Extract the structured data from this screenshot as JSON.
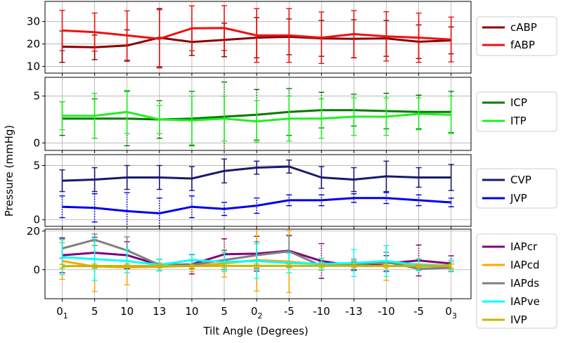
{
  "figure": {
    "ylabel": "Pressure (mmHg)",
    "xlabel": "Tilt Angle (Degrees)"
  },
  "chart_data": [
    {
      "type": "line",
      "panel": "arterial",
      "x_tick_labels": [
        {
          "base": "0",
          "sub": "1"
        },
        {
          "base": "5",
          "sub": ""
        },
        {
          "base": "10",
          "sub": ""
        },
        {
          "base": "13",
          "sub": ""
        },
        {
          "base": "10",
          "sub": ""
        },
        {
          "base": "5",
          "sub": ""
        },
        {
          "base": "0",
          "sub": "2"
        },
        {
          "base": "-5",
          "sub": ""
        },
        {
          "base": "-10",
          "sub": ""
        },
        {
          "base": "-13",
          "sub": ""
        },
        {
          "base": "-10",
          "sub": ""
        },
        {
          "base": "-5",
          "sub": ""
        },
        {
          "base": "0",
          "sub": "3"
        }
      ],
      "ylim": [
        7,
        39
      ],
      "yticks": [
        10,
        20,
        30
      ],
      "legend_placement": "right",
      "series": [
        {
          "name": "cABP",
          "color": "#8b0000",
          "style": "solid",
          "values": [
            18.8,
            18.5,
            19.3,
            22.8,
            20.9,
            21.8,
            22.8,
            23.2,
            22.5,
            22.3,
            22.5,
            21.0,
            21.6
          ],
          "errors": [
            7,
            5.5,
            7,
            13,
            6,
            7.5,
            9,
            8,
            8,
            8.5,
            8,
            7.5,
            6
          ]
        },
        {
          "name": "fABP",
          "color": "#ee1111",
          "style": "solid",
          "values": [
            26.0,
            25.3,
            23.8,
            22.3,
            27.0,
            27.1,
            23.8,
            23.8,
            22.8,
            24.4,
            23.4,
            22.8,
            22.0
          ],
          "errors": [
            9,
            8.5,
            11,
            13,
            10,
            10,
            12,
            12,
            11.5,
            10.5,
            11,
            11,
            10
          ]
        }
      ]
    },
    {
      "type": "line",
      "panel": "intracranial",
      "ylim": [
        -0.8,
        7
      ],
      "yticks": [
        0,
        5
      ],
      "legend_placement": "right",
      "series": [
        {
          "name": "ICP",
          "color": "#007b00",
          "style": "dotted",
          "values": [
            2.6,
            2.6,
            2.6,
            2.5,
            2.6,
            2.8,
            3.0,
            3.3,
            3.5,
            3.5,
            3.4,
            3.3,
            3.3
          ],
          "errors": [
            1.8,
            2.1,
            2.9,
            2.0,
            2.9,
            3.7,
            2.7,
            2.5,
            1.9,
            1.7,
            1.9,
            1.8,
            2.2
          ]
        },
        {
          "name": "ITP",
          "color": "#22ee22",
          "style": "solid",
          "values": [
            2.9,
            2.9,
            3.3,
            2.5,
            2.4,
            2.6,
            2.3,
            2.6,
            2.6,
            2.8,
            2.8,
            3.1,
            3.0
          ],
          "errors": [
            1.5,
            2.4,
            2.3,
            1.5,
            2.6,
            2.4,
            2.2,
            2.4,
            2.1,
            2.0,
            2.0,
            1.7,
            2.0
          ]
        }
      ]
    },
    {
      "type": "line",
      "panel": "venous",
      "ylim": [
        -0.6,
        6
      ],
      "yticks": [
        0,
        5
      ],
      "legend_placement": "right",
      "series": [
        {
          "name": "CVP",
          "color": "#191970",
          "style": "solid",
          "values": [
            3.6,
            3.7,
            3.9,
            3.9,
            3.8,
            4.5,
            4.8,
            4.9,
            3.9,
            3.7,
            4.0,
            3.9,
            3.9
          ],
          "errors": [
            1.0,
            1.1,
            1.1,
            1.1,
            1.1,
            1.1,
            0.6,
            0.6,
            1.0,
            1.1,
            1.4,
            0.9,
            1.2
          ]
        },
        {
          "name": "JVP",
          "color": "#0000ee",
          "style": "dotted",
          "values": [
            1.2,
            1.1,
            0.8,
            0.6,
            1.2,
            1.0,
            1.3,
            1.8,
            1.8,
            2.0,
            2.0,
            1.8,
            1.6
          ],
          "errors": [
            1.0,
            1.3,
            1.7,
            1.4,
            1.0,
            0.6,
            0.7,
            0.5,
            0.5,
            0.4,
            0.5,
            0.5,
            0.4
          ]
        }
      ]
    },
    {
      "type": "line",
      "panel": "abdominal",
      "ylim": [
        -15,
        21
      ],
      "yticks": [
        0,
        20
      ],
      "legend_placement": "right",
      "series": [
        {
          "name": "IAPcr",
          "color": "#800080",
          "style": "dotted",
          "values": [
            7.5,
            8.8,
            7.5,
            2.4,
            2.8,
            8.0,
            8.3,
            9.8,
            4.5,
            2.0,
            3.3,
            4.8,
            3.2
          ],
          "errors": [
            9,
            8,
            7,
            3,
            5,
            8,
            9,
            8,
            9,
            2,
            4,
            8,
            4
          ]
        },
        {
          "name": "IAPcd",
          "color": "#ffa500",
          "style": "solid",
          "values": [
            4.5,
            1.7,
            1.2,
            1.5,
            2.0,
            3.2,
            5.0,
            4.2,
            2.7,
            3.2,
            3.5,
            2.7,
            2.2
          ],
          "errors": [
            9.5,
            13,
            9,
            2,
            3,
            7,
            16,
            16,
            3,
            1.5,
            9,
            3,
            2
          ]
        },
        {
          "name": "IAPds",
          "color": "#808080",
          "style": "solid",
          "values": [
            11.0,
            15.5,
            10.0,
            2.5,
            2.5,
            5.0,
            7.5,
            9.5,
            2.0,
            2.5,
            4.0,
            0.5,
            1.0
          ],
          "errors": [
            5,
            3,
            7,
            3,
            2,
            5,
            7,
            8,
            2,
            3,
            5,
            1,
            2
          ]
        },
        {
          "name": "IAPve",
          "color": "#00ffff",
          "style": "solid",
          "values": [
            6.5,
            5.5,
            4.5,
            2.5,
            5.0,
            4.0,
            4.5,
            3.5,
            3.0,
            3.5,
            4.5,
            2.5,
            2.0
          ],
          "errors": [
            9,
            11,
            6,
            3,
            3,
            5,
            9,
            5,
            3,
            7,
            8,
            3,
            3
          ]
        },
        {
          "name": "IVP",
          "color": "#c8b400",
          "style": "solid",
          "values": [
            1.8,
            1.9,
            1.9,
            1.9,
            1.9,
            2.0,
            2.0,
            2.0,
            2.0,
            2.0,
            1.9,
            1.9,
            1.9
          ],
          "errors": [
            1,
            1,
            1,
            1,
            1,
            1,
            1,
            1,
            1,
            1,
            1,
            1,
            1
          ]
        }
      ]
    }
  ]
}
